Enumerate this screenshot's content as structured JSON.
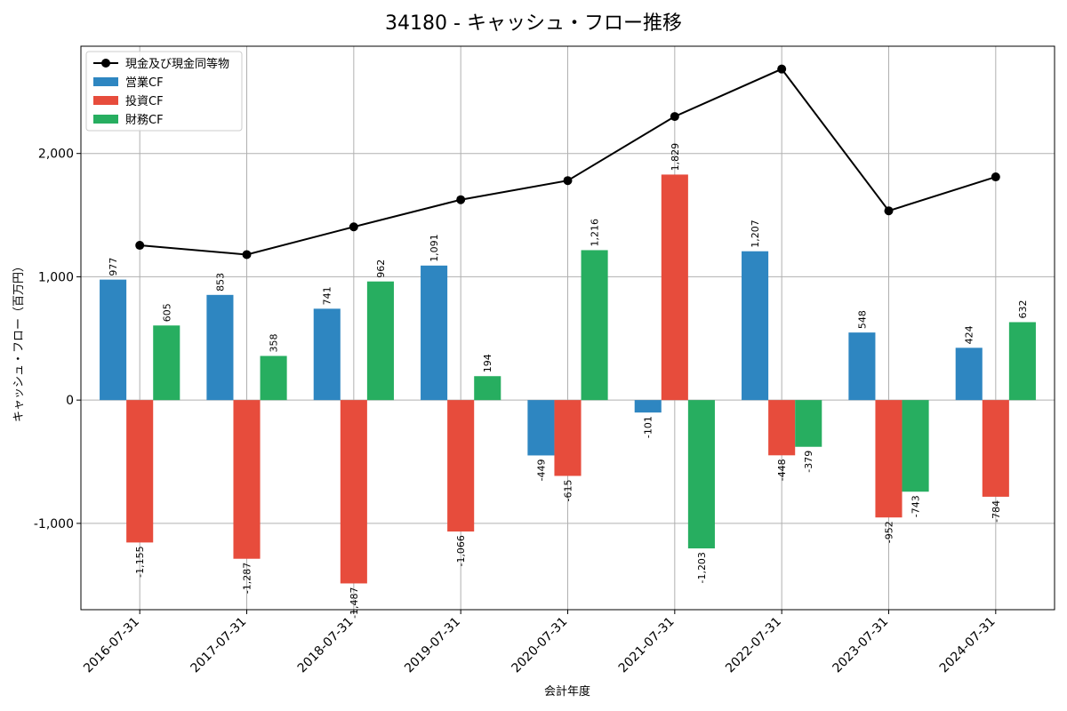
{
  "chart_data": {
    "type": "bar",
    "title": "34180 - キャッシュ・フロー推移",
    "xlabel": "会計年度",
    "ylabel": "キャッシュ・フロー（百万円）",
    "ylim": [
      -1700,
      2870
    ],
    "yticks": [
      -1000,
      0,
      1000,
      2000
    ],
    "ytick_labels": [
      "-1,000",
      "0",
      "1,000",
      "2,000"
    ],
    "grid": true,
    "legend_position": "top-left",
    "categories": [
      "2016-07-31",
      "2017-07-31",
      "2018-07-31",
      "2019-07-31",
      "2020-07-31",
      "2021-07-31",
      "2022-07-31",
      "2023-07-31",
      "2024-07-31"
    ],
    "series": [
      {
        "name": "営業CF",
        "kind": "bar",
        "color": "#2e86c1",
        "values": [
          977,
          853,
          741,
          1091,
          -449,
          -101,
          1207,
          548,
          424
        ],
        "labels": [
          "977",
          "853",
          "741",
          "1,091",
          "-449",
          "-101",
          "1,207",
          "548",
          "424"
        ]
      },
      {
        "name": "投資CF",
        "kind": "bar",
        "color": "#e74c3c",
        "values": [
          -1155,
          -1287,
          -1487,
          -1066,
          -615,
          1829,
          -448,
          -952,
          -784
        ],
        "labels": [
          "-1,155",
          "-1,287",
          "-1,487",
          "-1,066",
          "-615",
          "1,829",
          "-448",
          "-952",
          "-784"
        ]
      },
      {
        "name": "財務CF",
        "kind": "bar",
        "color": "#27ae60",
        "values": [
          605,
          358,
          962,
          194,
          1216,
          -1203,
          -379,
          -743,
          632
        ],
        "labels": [
          "605",
          "358",
          "962",
          "194",
          "1,216",
          "-1,203",
          "-379",
          "-743",
          "632"
        ]
      },
      {
        "name": "現金及び現金同等物",
        "kind": "line",
        "color": "#000000",
        "values": [
          1255,
          1180,
          1405,
          1625,
          1780,
          2300,
          2685,
          1535,
          1810
        ]
      }
    ],
    "legend_order": [
      "現金及び現金同等物",
      "営業CF",
      "投資CF",
      "財務CF"
    ]
  }
}
